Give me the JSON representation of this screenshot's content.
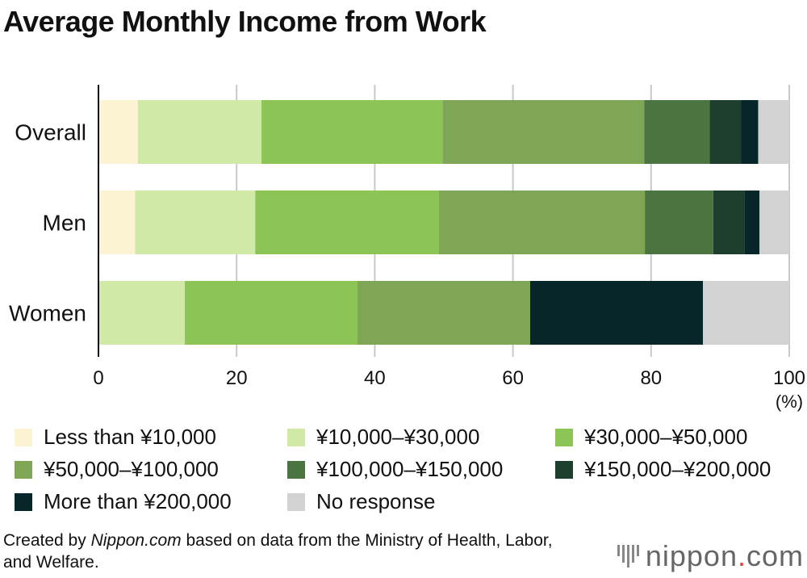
{
  "title": "Average Monthly Income from Work",
  "chart_data": {
    "type": "bar",
    "orientation": "horizontal",
    "stacked": true,
    "categories": [
      "Overall",
      "Men",
      "Women"
    ],
    "series": [
      {
        "name": "Less than ¥10,000",
        "color": "#fbf3d2",
        "values": [
          5.7,
          5.3,
          0
        ]
      },
      {
        "name": "¥10,000–¥30,000",
        "color": "#d0e9a6",
        "values": [
          17.9,
          17.4,
          12.5
        ]
      },
      {
        "name": "¥30,000–¥50,000",
        "color": "#8cc556",
        "values": [
          26.2,
          26.6,
          25.0
        ]
      },
      {
        "name": "¥50,000–¥100,000",
        "color": "#7fa654",
        "values": [
          29.2,
          29.8,
          25.0
        ]
      },
      {
        "name": "¥100,000–¥150,000",
        "color": "#4a7541",
        "values": [
          9.5,
          9.9,
          0
        ]
      },
      {
        "name": "¥150,000–¥200,000",
        "color": "#1e3f2d",
        "values": [
          4.5,
          4.5,
          0
        ]
      },
      {
        "name": "More than ¥200,000",
        "color": "#07262a",
        "values": [
          2.5,
          2.2,
          25.0
        ]
      },
      {
        "name": "No response",
        "color": "#d2d2d2",
        "values": [
          4.5,
          4.3,
          12.5
        ]
      }
    ],
    "xlim": [
      0,
      100
    ],
    "xticks": [
      0,
      20,
      40,
      60,
      80,
      100
    ],
    "xunit": "(%)",
    "grid": true
  },
  "source": {
    "prefix": "Created by ",
    "site": "Nippon.com",
    "suffix": " based on data from the Ministry of Health, Labor, and Welfare."
  },
  "logo": {
    "name": "nippon",
    "dot": ".",
    "tld": "com"
  }
}
